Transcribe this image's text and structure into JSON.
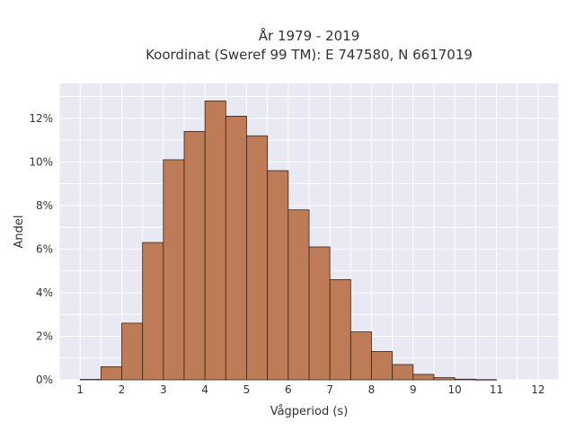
{
  "chart_data": {
    "type": "bar",
    "title_lines": [
      "År 1979 - 2019",
      "Koordinat (Sweref 99 TM): E 747580, N 6617019"
    ],
    "xlabel": "Vågperiod (s)",
    "ylabel": "Andel",
    "xlim": [
      0.5,
      12.5
    ],
    "ylim": [
      0,
      13.6
    ],
    "x_ticks": [
      "1",
      "2",
      "3",
      "4",
      "5",
      "6",
      "7",
      "8",
      "9",
      "10",
      "11",
      "12"
    ],
    "y_ticks": [
      "0%",
      "2%",
      "4%",
      "6%",
      "8%",
      "10%",
      "12%"
    ],
    "y_tick_values": [
      0,
      2,
      4,
      6,
      8,
      10,
      12
    ],
    "bin_width": 0.5,
    "bins": [
      {
        "start": 1.0,
        "value": 0.02
      },
      {
        "start": 1.5,
        "value": 0.6
      },
      {
        "start": 2.0,
        "value": 2.6
      },
      {
        "start": 2.5,
        "value": 6.3
      },
      {
        "start": 3.0,
        "value": 10.1
      },
      {
        "start": 3.5,
        "value": 11.4
      },
      {
        "start": 4.0,
        "value": 12.8
      },
      {
        "start": 4.5,
        "value": 12.1
      },
      {
        "start": 5.0,
        "value": 11.2
      },
      {
        "start": 5.5,
        "value": 9.6
      },
      {
        "start": 6.0,
        "value": 7.8
      },
      {
        "start": 6.5,
        "value": 6.1
      },
      {
        "start": 7.0,
        "value": 4.6
      },
      {
        "start": 7.5,
        "value": 2.2
      },
      {
        "start": 8.0,
        "value": 1.3
      },
      {
        "start": 8.5,
        "value": 0.7
      },
      {
        "start": 9.0,
        "value": 0.25
      },
      {
        "start": 9.5,
        "value": 0.1
      },
      {
        "start": 10.0,
        "value": 0.03
      },
      {
        "start": 10.5,
        "value": 0.01
      }
    ],
    "grid": true,
    "colors": {
      "bar_fill": "#be7b57",
      "bar_edge": "#3a2418",
      "plot_background": "#e8e9f2",
      "grid": "#ffffff",
      "text": "#333333"
    }
  }
}
